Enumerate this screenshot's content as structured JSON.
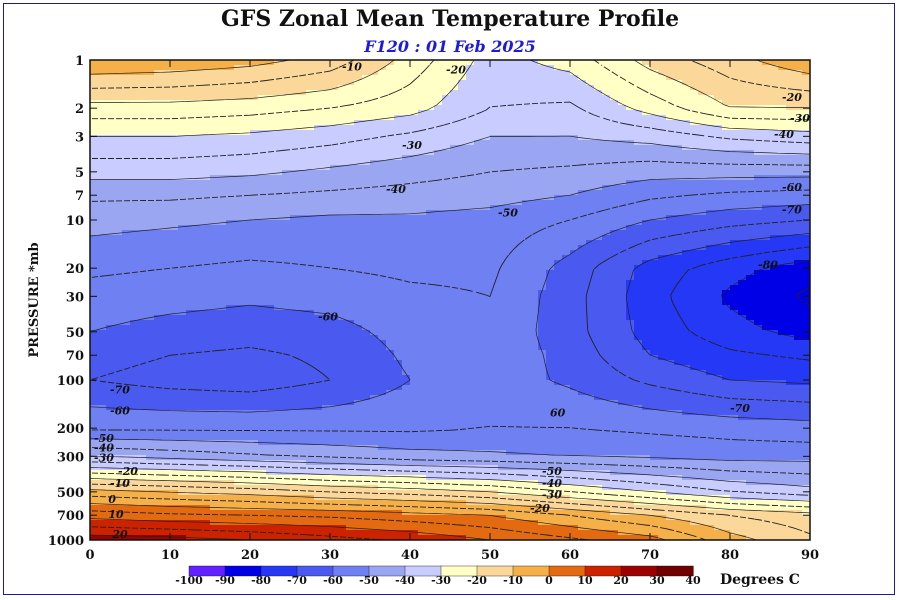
{
  "header": {
    "title": "GFS Zonal Mean Temperature Profile",
    "subtitle": "F120 : 01 Feb 2025"
  },
  "chart_data": {
    "type": "heatmap",
    "title": "GFS Zonal Mean Temperature Profile",
    "subtitle": "F120 : 01 Feb 2025",
    "xlabel": "",
    "ylabel": "PRESSURE *mb",
    "x_ticks": [
      0,
      10,
      20,
      30,
      40,
      50,
      60,
      70,
      80,
      90
    ],
    "xlim": [
      0,
      90
    ],
    "y_scale": "log",
    "y_ticks": [
      1,
      2,
      3,
      5,
      7,
      10,
      20,
      30,
      50,
      70,
      100,
      200,
      300,
      500,
      700,
      1000
    ],
    "y_tick_labels": [
      "1",
      "2",
      "3",
      "5",
      "7",
      "10",
      "20",
      "30",
      "50",
      "70",
      "100",
      "200",
      "300",
      "500",
      "700",
      "1000"
    ],
    "ylim": [
      1000,
      1
    ],
    "x": [
      0,
      10,
      20,
      30,
      40,
      50,
      60,
      70,
      80,
      90
    ],
    "y": [
      1,
      2,
      3,
      5,
      7,
      10,
      20,
      30,
      50,
      70,
      100,
      200,
      300,
      500,
      700,
      1000
    ],
    "z": [
      [
        -5,
        -6,
        -8,
        -12,
        -22,
        -32,
        -28,
        -18,
        -12,
        -6
      ],
      [
        -22,
        -22,
        -23,
        -25,
        -28,
        -35,
        -36,
        -28,
        -20,
        -20
      ],
      [
        -30,
        -30,
        -31,
        -33,
        -36,
        -40,
        -40,
        -38,
        -34,
        -32
      ],
      [
        -38,
        -38,
        -39,
        -41,
        -43,
        -45,
        -46,
        -48,
        -48,
        -48
      ],
      [
        -44,
        -44,
        -45,
        -46,
        -47,
        -48,
        -50,
        -54,
        -56,
        -57
      ],
      [
        -48,
        -49,
        -50,
        -51,
        -51,
        -52,
        -55,
        -60,
        -63,
        -65
      ],
      [
        -54,
        -55,
        -56,
        -55,
        -54,
        -54,
        -62,
        -72,
        -78,
        -83
      ],
      [
        -57,
        -58,
        -59,
        -58,
        -56,
        -55,
        -63,
        -73,
        -81,
        -86
      ],
      [
        -60,
        -62,
        -63,
        -62,
        -58,
        -56,
        -63,
        -72,
        -78,
        -82
      ],
      [
        -63,
        -65,
        -66,
        -64,
        -59,
        -56,
        -62,
        -70,
        -74,
        -76
      ],
      [
        -65,
        -67,
        -68,
        -65,
        -60,
        -57,
        -61,
        -66,
        -70,
        -71
      ],
      [
        -56,
        -56,
        -56,
        -56,
        -56,
        -55,
        -55,
        -56,
        -57,
        -58
      ],
      [
        -40,
        -42,
        -44,
        -46,
        -48,
        -49,
        -50,
        -51,
        -52,
        -52
      ],
      [
        -8,
        -10,
        -12,
        -15,
        -17,
        -20,
        -25,
        -30,
        -35,
        -38
      ],
      [
        8,
        6,
        5,
        4,
        2,
        0,
        -5,
        -10,
        -15,
        -18
      ],
      [
        23,
        22,
        20,
        17,
        14,
        10,
        6,
        2,
        -8,
        -14
      ]
    ],
    "contour_labels": [
      {
        "text": "-10",
        "x": 31.5,
        "p": 1.1
      },
      {
        "text": "-20",
        "x": 44.5,
        "p": 1.15
      },
      {
        "text": "-30",
        "x": 39,
        "p": 3.4
      },
      {
        "text": "-40",
        "x": 37,
        "p": 6.4
      },
      {
        "text": "-50",
        "x": 51,
        "p": 9.0
      },
      {
        "text": "-60",
        "x": 28.5,
        "p": 40
      },
      {
        "text": "-70",
        "x": 2.5,
        "p": 115
      },
      {
        "text": "-60",
        "x": 2.5,
        "p": 155
      },
      {
        "text": "-50",
        "x": 0.5,
        "p": 230
      },
      {
        "text": "-40",
        "x": 0.5,
        "p": 265
      },
      {
        "text": "-30",
        "x": 0.5,
        "p": 305
      },
      {
        "text": "-20",
        "x": 3.5,
        "p": 370
      },
      {
        "text": "-10",
        "x": 2.5,
        "p": 440
      },
      {
        "text": "0",
        "x": 2.3,
        "p": 555
      },
      {
        "text": "10",
        "x": 2.3,
        "p": 690
      },
      {
        "text": "20",
        "x": 2.8,
        "p": 920
      },
      {
        "text": "-20",
        "x": 86.5,
        "p": 1.7
      },
      {
        "text": "-30",
        "x": 87.5,
        "p": 2.3
      },
      {
        "text": "-40",
        "x": 85.5,
        "p": 2.9
      },
      {
        "text": "-60",
        "x": 86.5,
        "p": 6.2
      },
      {
        "text": "-70",
        "x": 86.5,
        "p": 8.6
      },
      {
        "text": "-80",
        "x": 83.5,
        "p": 19
      },
      {
        "text": "-70",
        "x": 80,
        "p": 150
      },
      {
        "text": "60",
        "x": 57.5,
        "p": 160
      },
      {
        "text": "-50",
        "x": 56.5,
        "p": 370
      },
      {
        "text": "-40",
        "x": 56.5,
        "p": 440
      },
      {
        "text": "-30",
        "x": 56.5,
        "p": 520
      },
      {
        "text": "-20",
        "x": 55,
        "p": 630
      }
    ],
    "levels": [
      -100,
      -90,
      -80,
      -70,
      -60,
      -50,
      -40,
      -30,
      -20,
      -10,
      0,
      10,
      20,
      30,
      40
    ],
    "colors": [
      "#8000e0",
      "#6020ff",
      "#0000e6",
      "#2438f5",
      "#4a5af0",
      "#6e80f2",
      "#9aa6f2",
      "#c8ccff",
      "#ffffc6",
      "#fbd79a",
      "#f5b049",
      "#e36a10",
      "#cc2200",
      "#9d0000",
      "#6e0000",
      "#8c7a2a"
    ],
    "colorbar_unit": "Degrees C"
  }
}
